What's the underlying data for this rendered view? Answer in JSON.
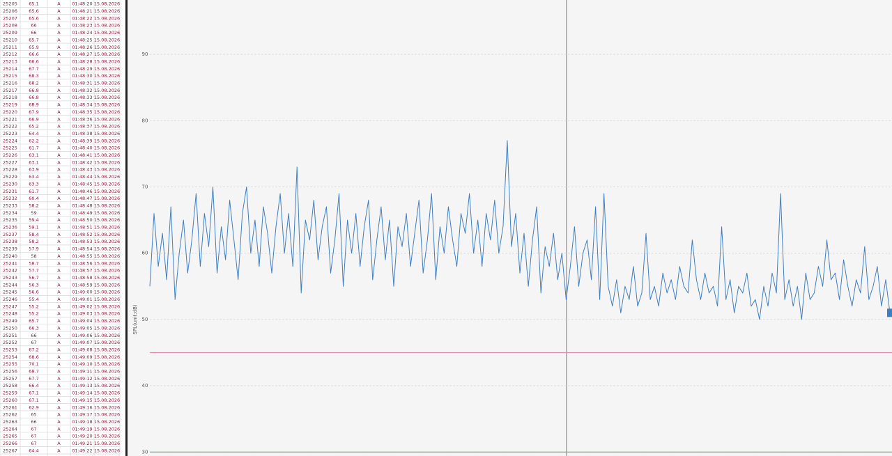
{
  "table": {
    "rows": [
      [
        "25205",
        "65.1",
        "A",
        "01:48:20",
        "15.08.2026"
      ],
      [
        "25206",
        "65.6",
        "A",
        "01:48:21",
        "15.08.2026"
      ],
      [
        "25207",
        "65.6",
        "A",
        "01:48:22",
        "15.08.2026"
      ],
      [
        "25208",
        "66",
        "A",
        "01:48:23",
        "15.08.2026"
      ],
      [
        "25209",
        "66",
        "A",
        "01:48:24",
        "15.08.2026"
      ],
      [
        "25210",
        "65.7",
        "A",
        "01:48:25",
        "15.08.2026"
      ],
      [
        "25211",
        "65.9",
        "A",
        "01:48:26",
        "15.08.2026"
      ],
      [
        "25212",
        "66.6",
        "A",
        "01:48:27",
        "15.08.2026"
      ],
      [
        "25213",
        "66.6",
        "A",
        "01:48:28",
        "15.08.2026"
      ],
      [
        "25214",
        "67.7",
        "A",
        "01:48:29",
        "15.08.2026"
      ],
      [
        "25215",
        "68.3",
        "A",
        "01:48:30",
        "15.08.2026"
      ],
      [
        "25216",
        "68.2",
        "A",
        "01:48:31",
        "15.08.2026"
      ],
      [
        "25217",
        "66.8",
        "A",
        "01:48:32",
        "15.08.2026"
      ],
      [
        "25218",
        "66.8",
        "A",
        "01:48:33",
        "15.08.2026"
      ],
      [
        "25219",
        "68.9",
        "A",
        "01:48:34",
        "15.08.2026"
      ],
      [
        "25220",
        "67.9",
        "A",
        "01:48:35",
        "15.08.2026"
      ],
      [
        "25221",
        "66.9",
        "A",
        "01:48:36",
        "15.08.2026"
      ],
      [
        "25222",
        "65.2",
        "A",
        "01:48:37",
        "15.08.2026"
      ],
      [
        "25223",
        "64.4",
        "A",
        "01:48:38",
        "15.08.2026"
      ],
      [
        "25224",
        "62.2",
        "A",
        "01:48:39",
        "15.08.2026"
      ],
      [
        "25225",
        "61.7",
        "A",
        "01:48:40",
        "15.08.2026"
      ],
      [
        "25226",
        "63.1",
        "A",
        "01:48:41",
        "15.08.2026"
      ],
      [
        "25227",
        "63.1",
        "A",
        "01:48:42",
        "15.08.2026"
      ],
      [
        "25228",
        "63.9",
        "A",
        "01:48:43",
        "15.08.2026"
      ],
      [
        "25229",
        "63.4",
        "A",
        "01:48:44",
        "15.08.2026"
      ],
      [
        "25230",
        "63.3",
        "A",
        "01:48:45",
        "15.08.2026"
      ],
      [
        "25231",
        "61.7",
        "A",
        "01:48:46",
        "15.08.2026"
      ],
      [
        "25232",
        "60.4",
        "A",
        "01:48:47",
        "15.08.2026"
      ],
      [
        "25233",
        "58.2",
        "A",
        "01:48:48",
        "15.08.2026"
      ],
      [
        "25234",
        "59",
        "A",
        "01:48:49",
        "15.08.2026"
      ],
      [
        "25235",
        "59.4",
        "A",
        "01:48:50",
        "15.08.2026"
      ],
      [
        "25236",
        "59.1",
        "A",
        "01:48:51",
        "15.08.2026"
      ],
      [
        "25237",
        "58.4",
        "A",
        "01:48:52",
        "15.08.2026"
      ],
      [
        "25238",
        "58.2",
        "A",
        "01:48:53",
        "15.08.2026"
      ],
      [
        "25239",
        "57.9",
        "A",
        "01:48:54",
        "15.08.2026"
      ],
      [
        "25240",
        "58",
        "A",
        "01:48:55",
        "15.08.2026"
      ],
      [
        "25241",
        "58.7",
        "A",
        "01:48:56",
        "15.08.2026"
      ],
      [
        "25242",
        "57.7",
        "A",
        "01:48:57",
        "15.08.2026"
      ],
      [
        "25243",
        "56.7",
        "A",
        "01:48:58",
        "15.08.2026"
      ],
      [
        "25244",
        "56.3",
        "A",
        "01:48:59",
        "15.08.2026"
      ],
      [
        "25245",
        "56.6",
        "A",
        "01:49:00",
        "15.08.2026"
      ],
      [
        "25246",
        "55.4",
        "A",
        "01:49:01",
        "15.08.2026"
      ],
      [
        "25247",
        "55.2",
        "A",
        "01:49:02",
        "15.08.2026"
      ],
      [
        "25248",
        "55.2",
        "A",
        "01:49:03",
        "15.08.2026"
      ],
      [
        "25249",
        "65.7",
        "A",
        "01:49:04",
        "15.08.2026"
      ],
      [
        "25250",
        "66.3",
        "A",
        "01:49:05",
        "15.08.2026"
      ],
      [
        "25251",
        "66",
        "A",
        "01:49:06",
        "15.08.2026"
      ],
      [
        "25252",
        "67",
        "A",
        "01:49:07",
        "15.08.2026"
      ],
      [
        "25253",
        "67.2",
        "A",
        "01:49:08",
        "15.08.2026"
      ],
      [
        "25254",
        "68.6",
        "A",
        "01:49:09",
        "15.08.2026"
      ],
      [
        "25255",
        "70.1",
        "A",
        "01:49:10",
        "15.08.2026"
      ],
      [
        "25256",
        "68.7",
        "A",
        "01:49:11",
        "15.08.2026"
      ],
      [
        "25257",
        "67.7",
        "A",
        "01:49:12",
        "15.08.2026"
      ],
      [
        "25258",
        "66.4",
        "A",
        "01:49:13",
        "15.08.2026"
      ],
      [
        "25259",
        "67.1",
        "A",
        "01:49:14",
        "15.08.2026"
      ],
      [
        "25260",
        "67.1",
        "A",
        "01:49:15",
        "15.08.2026"
      ],
      [
        "25261",
        "62.9",
        "A",
        "01:49:16",
        "15.08.2026"
      ],
      [
        "25262",
        "65",
        "A",
        "01:49:17",
        "15.08.2026"
      ],
      [
        "25263",
        "66",
        "A",
        "01:49:18",
        "15.08.2026"
      ],
      [
        "25264",
        "67",
        "A",
        "01:49:19",
        "15.08.2026"
      ],
      [
        "25265",
        "67",
        "A",
        "01:49:20",
        "15.08.2026"
      ],
      [
        "25266",
        "67",
        "A",
        "01:49:21",
        "15.08.2026"
      ],
      [
        "25267",
        "64.4",
        "A",
        "01:49:22",
        "15.08.2026"
      ]
    ]
  },
  "chart_data": {
    "type": "line",
    "y_label": "SPL(unit:dB)",
    "ylim": [
      29.4,
      98.2
    ],
    "yticks": [
      30,
      40,
      50,
      60,
      70,
      80,
      90
    ],
    "grid": true,
    "reference_lines": [
      {
        "value": 45,
        "color": "#e48bb4"
      },
      {
        "value": 30,
        "color": "#6aaa6a"
      }
    ],
    "series": [
      {
        "color": "#3f7fc0",
        "values": [
          55,
          66,
          58,
          63,
          56,
          67,
          53,
          60,
          65,
          57,
          62,
          69,
          58,
          66,
          61,
          70,
          57,
          64,
          59,
          68,
          62,
          56,
          66,
          70,
          60,
          65,
          58,
          67,
          63,
          57,
          64,
          69,
          60,
          66,
          58,
          73,
          54,
          65,
          62,
          68,
          59,
          64,
          67,
          57,
          62,
          69,
          55,
          65,
          60,
          66,
          58,
          64,
          68,
          56,
          62,
          67,
          59,
          65,
          55,
          64,
          61,
          66,
          58,
          63,
          68,
          57,
          62,
          69,
          56,
          64,
          60,
          67,
          62,
          58,
          66,
          63,
          69,
          60,
          65,
          58,
          66,
          62,
          68,
          60,
          64,
          77,
          61,
          66,
          57,
          63,
          55,
          62,
          67,
          54,
          61,
          58,
          63,
          56,
          60,
          53,
          58,
          64,
          55,
          60,
          62,
          56,
          67,
          53,
          69,
          55,
          52,
          56,
          51,
          55,
          53,
          58,
          52,
          54,
          63,
          53,
          55,
          52,
          57,
          54,
          56,
          53,
          58,
          55,
          54,
          62,
          56,
          53,
          57,
          54,
          55,
          52,
          64,
          53,
          56,
          51,
          55,
          54,
          57,
          52,
          53,
          50,
          55,
          52,
          57,
          54,
          69,
          53,
          56,
          52,
          55,
          50,
          57,
          53,
          54,
          58,
          55,
          62,
          56,
          57,
          53,
          59,
          55,
          52,
          56,
          54,
          61,
          53,
          55,
          58,
          52,
          56,
          51
        ]
      }
    ]
  }
}
